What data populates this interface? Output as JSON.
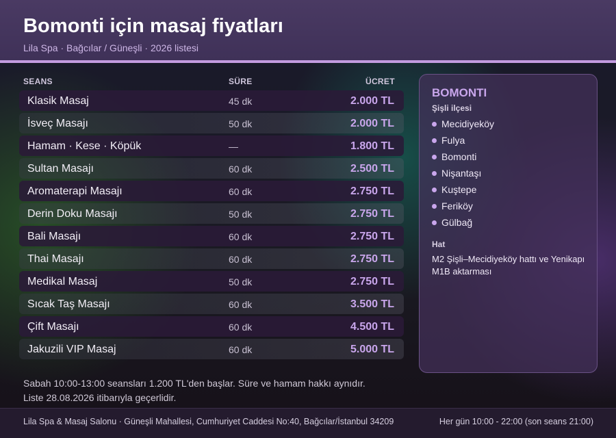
{
  "header": {
    "title": "Bomonti için masaj fiyatları",
    "subtitle": "Lila Spa · Bağcılar / Güneşli · 2026 listesi"
  },
  "table": {
    "columns": {
      "session": "SEANS",
      "duration": "SÜRE",
      "price": "ÜCRET"
    },
    "rows": [
      {
        "name": "Klasik Masaj",
        "duration": "45 dk",
        "price": "2.000 TL"
      },
      {
        "name": "İsveç Masajı",
        "duration": "50 dk",
        "price": "2.000 TL"
      },
      {
        "name": "Hamam · Kese · Köpük",
        "duration": "—",
        "price": "1.800 TL"
      },
      {
        "name": "Sultan Masajı",
        "duration": "60 dk",
        "price": "2.500 TL"
      },
      {
        "name": "Aromaterapi Masajı",
        "duration": "60 dk",
        "price": "2.750 TL"
      },
      {
        "name": "Derin Doku Masajı",
        "duration": "50 dk",
        "price": "2.750 TL"
      },
      {
        "name": "Bali Masajı",
        "duration": "60 dk",
        "price": "2.750 TL"
      },
      {
        "name": "Thai Masajı",
        "duration": "60 dk",
        "price": "2.750 TL"
      },
      {
        "name": "Medikal Masaj",
        "duration": "50 dk",
        "price": "2.750 TL"
      },
      {
        "name": "Sıcak Taş Masajı",
        "duration": "60 dk",
        "price": "3.500 TL"
      },
      {
        "name": "Çift Masajı",
        "duration": "60 dk",
        "price": "4.500 TL"
      },
      {
        "name": "Jakuzili VIP Masaj",
        "duration": "60 dk",
        "price": "5.000 TL"
      }
    ]
  },
  "notes": {
    "line1": "Sabah 10:00-13:00 seansları 1.200 TL'den başlar. Süre ve hamam hakkı aynıdır.",
    "line2": "Liste 28.08.2026 itibarıyla geçerlidir."
  },
  "panel": {
    "title": "BOMONTI",
    "subtitle": "Şişli ilçesi",
    "neighborhoods": [
      "Mecidiyeköy",
      "Fulya",
      "Bomonti",
      "Nişantaşı",
      "Kuştepe",
      "Feriköy",
      "Gülbağ"
    ],
    "transit_label": "Hat",
    "transit_text": "M2 Şişli–Mecidiyeköy hattı ve Yenikapı M1B aktarması"
  },
  "footer": {
    "address": "Lila Spa & Masaj Salonu · Güneşli Mahallesi, Cumhuriyet Caddesi No:40, Bağcılar/İstanbul 34209",
    "hours": "Her gün 10:00 - 22:00 (son seans 21:00)"
  },
  "colors": {
    "accent": "#c9a6ec",
    "header_bg": "#4a3a63",
    "header_line": "#c39be0"
  }
}
